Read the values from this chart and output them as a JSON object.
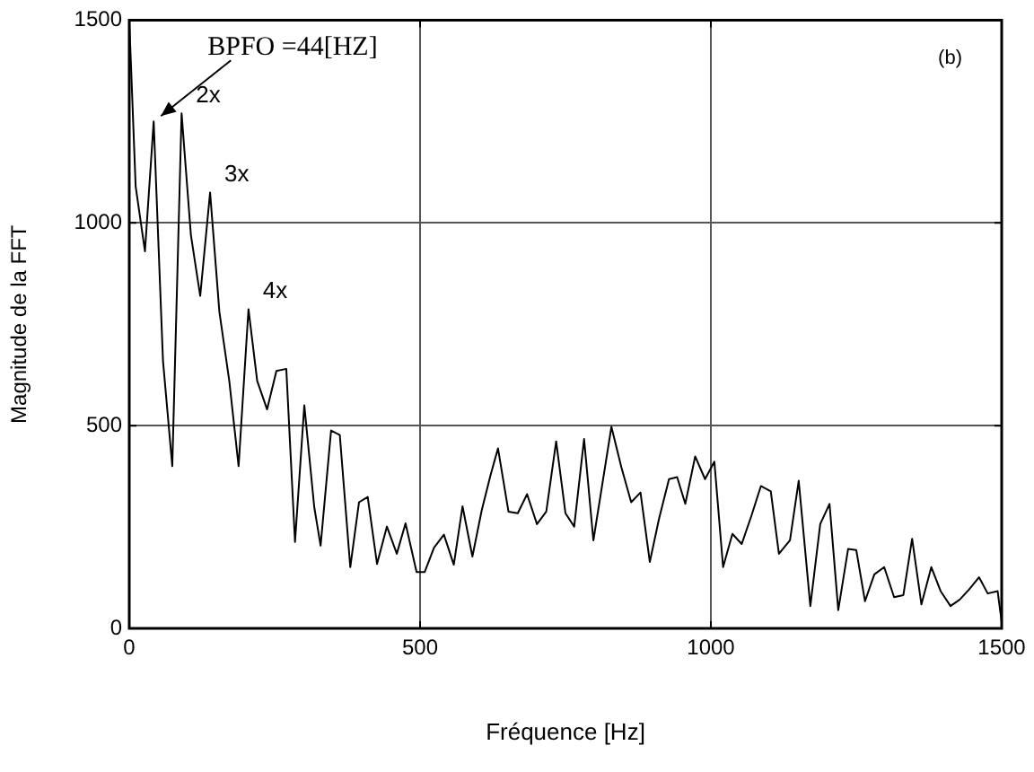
{
  "chart_data": {
    "type": "line",
    "xlabel": "Fréquence [Hz]",
    "ylabel": "Magnitude de la FFT",
    "x": [
      0,
      11,
      27,
      42,
      58,
      74,
      90,
      106,
      122,
      139,
      155,
      172,
      188,
      205,
      220,
      237,
      253,
      270,
      285,
      301,
      318,
      329,
      347,
      362,
      380,
      395,
      410,
      426,
      443,
      460,
      475,
      494,
      508,
      524,
      541,
      558,
      573,
      590,
      606,
      621,
      634,
      652,
      668,
      684,
      701,
      717,
      734,
      750,
      765,
      782,
      798,
      829,
      846,
      863,
      879,
      895,
      911,
      928,
      942,
      956,
      973,
      990,
      1006,
      1021,
      1037,
      1053,
      1070,
      1086,
      1103,
      1117,
      1136,
      1151,
      1171,
      1188,
      1204,
      1219,
      1236,
      1250,
      1265,
      1281,
      1298,
      1315,
      1331,
      1346,
      1362,
      1379,
      1395,
      1412,
      1428,
      1444,
      1461,
      1476,
      1493,
      1500
    ],
    "values": [
      1500,
      1090,
      930,
      1250,
      660,
      400,
      1270,
      970,
      820,
      1075,
      780,
      610,
      400,
      787,
      610,
      540,
      635,
      640,
      213,
      550,
      300,
      204,
      488,
      477,
      151,
      311,
      324,
      159,
      251,
      184,
      259,
      139,
      139,
      199,
      231,
      157,
      301,
      177,
      291,
      377,
      444,
      288,
      284,
      331,
      257,
      288,
      461,
      284,
      251,
      467,
      217,
      497,
      398,
      311,
      335,
      164,
      271,
      368,
      373,
      307,
      424,
      368,
      411,
      151,
      233,
      208,
      279,
      351,
      338,
      184,
      217,
      364,
      55,
      257,
      307,
      45,
      196,
      193,
      67,
      133,
      151,
      77,
      82,
      221,
      59,
      151,
      92,
      55,
      71,
      96,
      126,
      86,
      92,
      15
    ],
    "color": "#000000",
    "xlim": [
      0,
      1500
    ],
    "ylim": [
      0,
      1500
    ],
    "xticks": [
      0,
      500,
      1000,
      1500
    ],
    "yticks": [
      0,
      500,
      1000,
      1500
    ],
    "grid": true,
    "legend": false,
    "marker": "none",
    "line_style": "solid",
    "annotations": [
      {
        "text": "BPFO =44[HZ]",
        "x": 42,
        "y": 1250
      },
      {
        "text": "2x",
        "x": 90,
        "y": 1270
      },
      {
        "text": "3x",
        "x": 139,
        "y": 1075
      },
      {
        "text": "4x",
        "x": 205,
        "y": 787
      },
      "(b)"
    ]
  }
}
